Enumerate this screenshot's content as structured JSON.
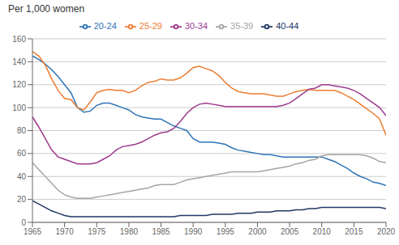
{
  "chart_data": {
    "type": "line",
    "ylabel": "Per 1,000 women",
    "x": [
      1965,
      1966,
      1967,
      1968,
      1969,
      1970,
      1971,
      1972,
      1973,
      1974,
      1975,
      1976,
      1977,
      1978,
      1979,
      1980,
      1981,
      1982,
      1983,
      1984,
      1985,
      1986,
      1987,
      1988,
      1989,
      1990,
      1991,
      1992,
      1993,
      1994,
      1995,
      1996,
      1997,
      1998,
      1999,
      2000,
      2001,
      2002,
      2003,
      2004,
      2005,
      2006,
      2007,
      2008,
      2009,
      2010,
      2011,
      2012,
      2013,
      2014,
      2015,
      2016,
      2017,
      2018,
      2019,
      2020
    ],
    "series": [
      {
        "name": "20-24",
        "color": "#2E75B6",
        "values": [
          145,
          142,
          138,
          133,
          127,
          120,
          113,
          100,
          96,
          97,
          102,
          104,
          104,
          102,
          100,
          98,
          94,
          92,
          91,
          90,
          90,
          87,
          84,
          82,
          80,
          73,
          70,
          70,
          70,
          69,
          68,
          65,
          63,
          62,
          61,
          60,
          59,
          59,
          58,
          57,
          57,
          57,
          57,
          57,
          57,
          57,
          55,
          53,
          50,
          47,
          43,
          40,
          38,
          35,
          34,
          32
        ]
      },
      {
        "name": "25-29",
        "color": "#ED7D31",
        "values": [
          149,
          145,
          137,
          125,
          115,
          108,
          107,
          100,
          98,
          105,
          113,
          115,
          116,
          115,
          115,
          113,
          115,
          119,
          122,
          123,
          125,
          124,
          124,
          126,
          130,
          135,
          136,
          134,
          132,
          128,
          122,
          117,
          114,
          113,
          112,
          112,
          112,
          111,
          110,
          110,
          112,
          114,
          115,
          116,
          115,
          115,
          115,
          115,
          113,
          110,
          107,
          103,
          99,
          95,
          90,
          76
        ]
      },
      {
        "name": "30-34",
        "color": "#9E3A8F",
        "values": [
          92,
          83,
          73,
          63,
          57,
          55,
          53,
          51,
          51,
          51,
          52,
          55,
          58,
          63,
          66,
          67,
          68,
          70,
          73,
          76,
          78,
          79,
          82,
          88,
          95,
          100,
          103,
          104,
          103,
          102,
          101,
          101,
          101,
          101,
          101,
          101,
          101,
          101,
          101,
          102,
          104,
          108,
          112,
          116,
          117,
          120,
          120,
          119,
          118,
          117,
          115,
          112,
          108,
          104,
          100,
          93
        ]
      },
      {
        "name": "35-39",
        "color": "#A5A5A5",
        "values": [
          52,
          46,
          40,
          34,
          28,
          24,
          22,
          21,
          21,
          21,
          22,
          23,
          24,
          25,
          26,
          27,
          28,
          29,
          30,
          32,
          33,
          33,
          33,
          35,
          37,
          38,
          39,
          40,
          41,
          42,
          43,
          44,
          44,
          44,
          44,
          44,
          45,
          46,
          47,
          48,
          49,
          51,
          52,
          54,
          55,
          58,
          59,
          59,
          59,
          59,
          59,
          59,
          58,
          56,
          53,
          52
        ]
      },
      {
        "name": "40-44",
        "color": "#203864",
        "values": [
          19,
          16,
          13,
          10,
          8,
          6,
          5,
          5,
          5,
          5,
          5,
          5,
          5,
          5,
          5,
          5,
          5,
          5,
          5,
          5,
          5,
          5,
          5,
          6,
          6,
          6,
          6,
          6,
          7,
          7,
          7,
          7,
          8,
          8,
          8,
          9,
          9,
          9,
          10,
          10,
          10,
          11,
          11,
          12,
          12,
          13,
          13,
          13,
          13,
          13,
          13,
          13,
          13,
          13,
          13,
          12
        ]
      }
    ],
    "xlim": [
      1965,
      2020
    ],
    "xticks": [
      1965,
      1970,
      1975,
      1980,
      1985,
      1990,
      1995,
      2000,
      2005,
      2010,
      2015,
      2020
    ],
    "ylim": [
      0,
      160
    ],
    "yticks": [
      0,
      20,
      40,
      60,
      80,
      100,
      120,
      140,
      160
    ],
    "grid": true,
    "legend": "top"
  }
}
